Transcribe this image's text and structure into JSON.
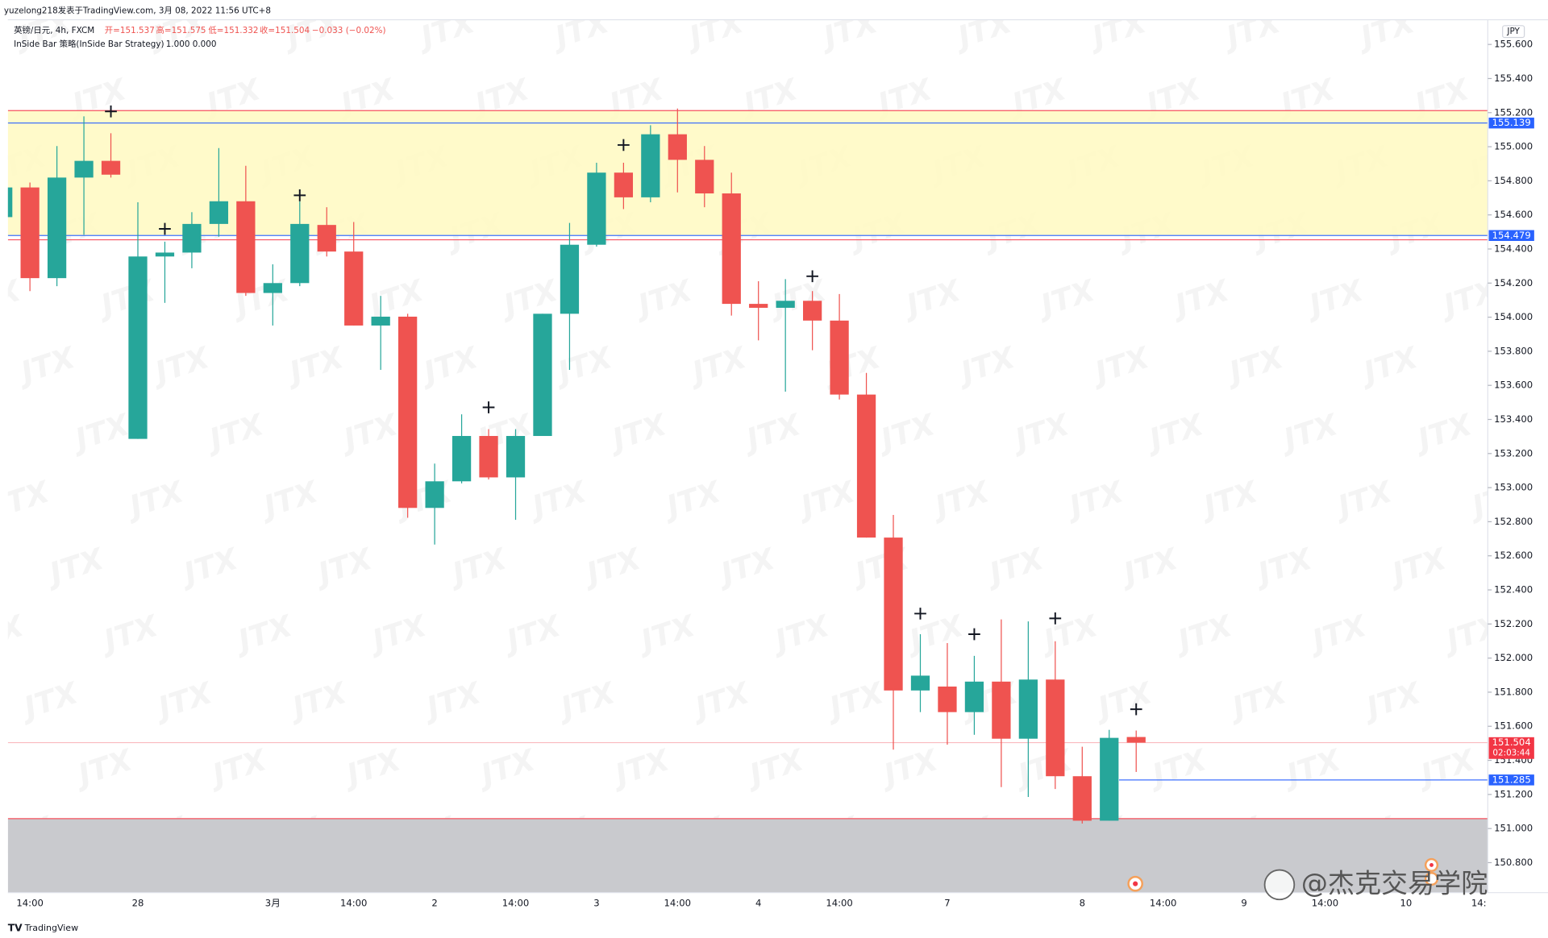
{
  "header": {
    "author_line": "yuzelong218发表于TradingView.com, 3月 08, 2022 11:56 UTC+8",
    "symbol": "英镑/日元, 4h, FXCM",
    "open": "开=151.537",
    "high": "高=151.575",
    "low": "低=151.332",
    "close": "收=151.504",
    "change": "−0.033 (−0.02%)",
    "indicator": "InSide Bar 策略(InSide Bar Strategy)",
    "indicator_values": "1.000  0.000"
  },
  "footer": {
    "brand": "TradingView",
    "watermark": "@杰克交易学院"
  },
  "chart_data": {
    "type": "candlestick",
    "currency": "JPY",
    "watermark": "JTX",
    "up_color": "#26a69a",
    "down_color": "#ef5350",
    "open": [
      154.587,
      154.761,
      154.229,
      154.819,
      154.917,
      153.286,
      154.356,
      154.379,
      154.547,
      154.68,
      154.142,
      154.2,
      154.541,
      154.385,
      153.951,
      154.003,
      152.881,
      153.037,
      153.303,
      153.06,
      153.303,
      154.02,
      154.425,
      154.848,
      154.703,
      155.073,
      154.923,
      154.726,
      154.078,
      154.055,
      154.096,
      153.98,
      153.546,
      152.707,
      151.81,
      151.833,
      151.683,
      151.862,
      151.527,
      151.874,
      151.307,
      151.046,
      151.537
    ],
    "high": [
      154.761,
      154.79,
      155.004,
      155.178,
      155.079,
      154.674,
      154.443,
      154.616,
      154.992,
      154.888,
      154.31,
      154.68,
      154.645,
      154.558,
      154.125,
      154.02,
      153.141,
      153.43,
      153.343,
      153.343,
      154.02,
      154.553,
      154.906,
      154.906,
      155.126,
      155.224,
      155.004,
      154.848,
      154.211,
      154.223,
      154.153,
      154.136,
      153.673,
      152.84,
      152.14,
      152.088,
      152.013,
      152.227,
      152.215,
      152.099,
      151.48,
      151.579,
      151.575
    ],
    "low": [
      154.587,
      154.153,
      154.182,
      154.483,
      154.819,
      153.286,
      154.084,
      154.287,
      154.472,
      154.125,
      153.951,
      154.182,
      154.356,
      153.951,
      153.691,
      152.823,
      152.666,
      153.025,
      153.048,
      152.811,
      153.303,
      153.691,
      154.414,
      154.634,
      154.674,
      154.732,
      154.645,
      154.009,
      153.864,
      153.563,
      153.806,
      153.517,
      152.707,
      151.463,
      151.683,
      151.492,
      151.55,
      151.243,
      151.185,
      151.232,
      151.029,
      151.046,
      151.332
    ],
    "close": [
      154.761,
      154.229,
      154.819,
      154.917,
      154.836,
      154.356,
      154.379,
      154.547,
      154.68,
      154.142,
      154.2,
      154.547,
      154.385,
      153.951,
      154.003,
      152.881,
      153.037,
      153.303,
      153.06,
      153.303,
      154.02,
      154.425,
      154.848,
      154.703,
      155.073,
      154.923,
      154.726,
      154.078,
      154.055,
      154.096,
      153.98,
      153.546,
      152.707,
      151.81,
      151.897,
      151.683,
      151.862,
      151.527,
      151.874,
      151.307,
      151.046,
      151.532,
      151.504
    ],
    "signals": [
      null,
      null,
      null,
      null,
      155.207,
      null,
      154.518,
      null,
      null,
      null,
      null,
      154.715,
      null,
      null,
      null,
      null,
      null,
      null,
      153.471,
      null,
      null,
      null,
      null,
      155.01,
      null,
      null,
      null,
      null,
      null,
      null,
      154.24,
      null,
      null,
      null,
      152.261,
      null,
      152.14,
      null,
      null,
      152.233,
      null,
      null,
      151.7
    ],
    "ylim": [
      150.624,
      155.745
    ],
    "yticks": [
      {
        "value": 155.6,
        "label": "155.600"
      },
      {
        "value": 155.4,
        "label": "155.400"
      },
      {
        "value": 155.2,
        "label": "155.200"
      },
      {
        "value": 155.0,
        "label": "155.000"
      },
      {
        "value": 154.8,
        "label": "154.800"
      },
      {
        "value": 154.6,
        "label": "154.600"
      },
      {
        "value": 154.4,
        "label": "154.400"
      },
      {
        "value": 154.2,
        "label": "154.200"
      },
      {
        "value": 154.0,
        "label": "154.000"
      },
      {
        "value": 153.8,
        "label": "153.800"
      },
      {
        "value": 153.6,
        "label": "153.600"
      },
      {
        "value": 153.4,
        "label": "153.400"
      },
      {
        "value": 153.2,
        "label": "153.200"
      },
      {
        "value": 153.0,
        "label": "153.000"
      },
      {
        "value": 152.8,
        "label": "152.800"
      },
      {
        "value": 152.6,
        "label": "152.600"
      },
      {
        "value": 152.4,
        "label": "152.400"
      },
      {
        "value": 152.2,
        "label": "152.200"
      },
      {
        "value": 152.0,
        "label": "152.000"
      },
      {
        "value": 151.8,
        "label": "151.800"
      },
      {
        "value": 151.6,
        "label": "151.600"
      },
      {
        "value": 151.4,
        "label": "151.400"
      },
      {
        "value": 151.2,
        "label": "151.200"
      },
      {
        "value": 151.0,
        "label": "151.000"
      },
      {
        "value": 150.8,
        "label": "150.800"
      }
    ],
    "xticks": [
      {
        "value": 1,
        "label": "14:00"
      },
      {
        "value": 5,
        "label": "28"
      },
      {
        "value": 10,
        "label": "3月"
      },
      {
        "value": 13,
        "label": "14:00"
      },
      {
        "value": 16,
        "label": "2"
      },
      {
        "value": 19,
        "label": "14:00"
      },
      {
        "value": 22,
        "label": "3"
      },
      {
        "value": 25,
        "label": "14:00"
      },
      {
        "value": 28,
        "label": "4"
      },
      {
        "value": 31,
        "label": "14:00"
      },
      {
        "value": 35,
        "label": "7"
      },
      {
        "value": 40,
        "label": "8"
      },
      {
        "value": 43,
        "label": "14:00"
      },
      {
        "value": 46,
        "label": "9"
      },
      {
        "value": 49,
        "label": "14:00"
      },
      {
        "value": 52,
        "label": "10"
      },
      {
        "value": 54.7,
        "label": "14:"
      }
    ],
    "zones": [
      {
        "bottom": 154.479,
        "top": 155.212,
        "color": "#fff9c4"
      },
      {
        "bottom": 150.624,
        "top": 151.058,
        "color": "#c9cace"
      }
    ],
    "lines": [
      {
        "value": 155.212,
        "color": "#f7525f"
      },
      {
        "value": 154.454,
        "color": "#f7525f"
      },
      {
        "value": 151.058,
        "color": "#f7525f"
      }
    ],
    "levels": [
      {
        "value": 155.139,
        "label": "155.139",
        "color": "#2962ff"
      },
      {
        "value": 154.479,
        "label": "154.479",
        "color": "#2962ff"
      },
      {
        "value": 151.504,
        "label": "151.504",
        "color": "#f23645",
        "countdown": "02:03:44"
      },
      {
        "value": 151.285,
        "label": "151.285",
        "color": "#2962ff"
      }
    ]
  }
}
